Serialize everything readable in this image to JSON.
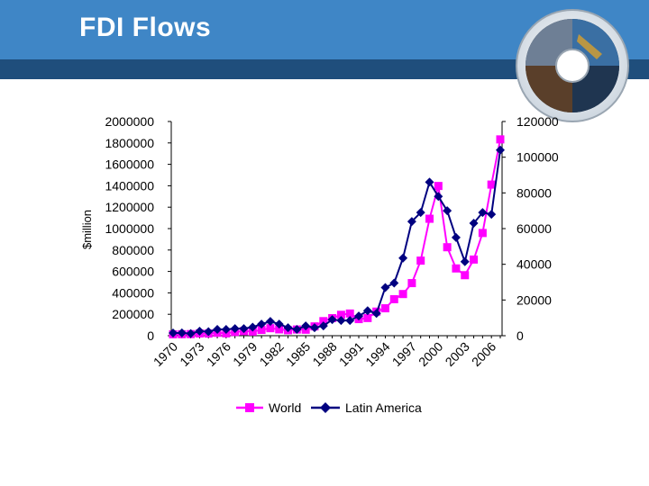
{
  "slide": {
    "title": "FDI Flows"
  },
  "colors": {
    "header_blue": "#3f86c6",
    "header_dark": "#1f4e7c",
    "world": "#ff00ff",
    "latin_america": "#000080"
  },
  "chart_data": {
    "type": "line",
    "title": "",
    "xlabel": "",
    "ylabel": "$million",
    "y_left": {
      "label": "$million",
      "ylim": [
        0,
        2000000
      ],
      "ticks": [
        "2000000",
        "1800000",
        "1600000",
        "1400000",
        "1200000",
        "1000000",
        "800000",
        "600000",
        "400000",
        "200000",
        "0"
      ]
    },
    "y_right": {
      "ylim": [
        0,
        120000
      ],
      "ticks": [
        "120000",
        "100000",
        "80000",
        "60000",
        "40000",
        "20000",
        "0"
      ]
    },
    "x_tick_labels": [
      "1970",
      "1973",
      "1976",
      "1979",
      "1982",
      "1985",
      "1988",
      "1991",
      "1994",
      "1997",
      "2000",
      "2003",
      "2006"
    ],
    "x": [
      1970,
      1971,
      1972,
      1973,
      1974,
      1975,
      1976,
      1977,
      1978,
      1979,
      1980,
      1981,
      1982,
      1983,
      1984,
      1985,
      1986,
      1987,
      1988,
      1989,
      1990,
      1991,
      1992,
      1993,
      1994,
      1995,
      1996,
      1997,
      1998,
      1999,
      2000,
      2001,
      2002,
      2003,
      2004,
      2005,
      2006,
      2007
    ],
    "legend_position": "bottom",
    "grid": false,
    "series": [
      {
        "name": "World",
        "axis": "left",
        "values": [
          13000,
          14000,
          15000,
          21000,
          20000,
          27000,
          22000,
          35000,
          43000,
          39000,
          54000,
          70000,
          59000,
          51000,
          58000,
          56000,
          87000,
          136000,
          164000,
          195000,
          207000,
          155000,
          165000,
          225000,
          256000,
          341000,
          389000,
          491000,
          701000,
          1092000,
          1398000,
          826000,
          628000,
          565000,
          711000,
          959000,
          1411000,
          1833000
        ]
      },
      {
        "name": "Latin America",
        "axis": "right",
        "values": [
          1500,
          1600,
          1200,
          2500,
          2300,
          3500,
          3500,
          4000,
          4000,
          4800,
          6500,
          8000,
          6500,
          4500,
          3500,
          5500,
          4500,
          5500,
          9000,
          8500,
          8500,
          11000,
          14000,
          12500,
          27000,
          29500,
          43500,
          64000,
          69000,
          86000,
          78000,
          70000,
          55000,
          41500,
          63000,
          69000,
          68000,
          104000
        ]
      }
    ]
  }
}
